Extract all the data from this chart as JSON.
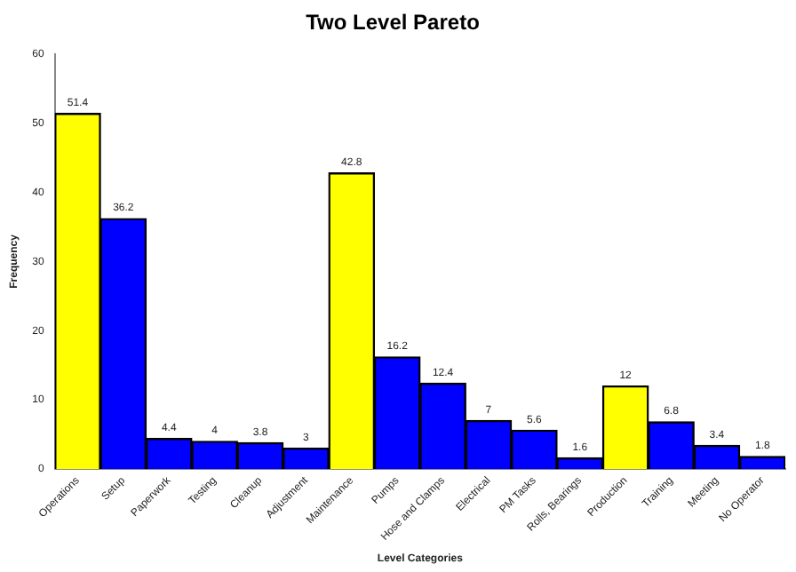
{
  "chart_data": {
    "type": "bar",
    "title": "Two Level Pareto",
    "xlabel": "Level Categories",
    "ylabel": "Frequency",
    "categories": [
      "Operations",
      "Setup",
      "Paperwork",
      "Testing",
      "Cleanup",
      "Adjustment",
      "Maintenance",
      "Pumps",
      "Hose and Clamps",
      "Electrical",
      "PM Tasks",
      "Rolls, Bearings",
      "Production",
      "Training",
      "Meeting",
      "No Operator"
    ],
    "values": [
      51.4,
      36.2,
      4.4,
      4,
      3.8,
      3,
      42.8,
      16.2,
      12.4,
      7,
      5.6,
      1.6,
      12,
      6.8,
      3.4,
      1.8
    ],
    "colors": [
      "#ffff00",
      "#0000ff",
      "#0000ff",
      "#0000ff",
      "#0000ff",
      "#0000ff",
      "#ffff00",
      "#0000ff",
      "#0000ff",
      "#0000ff",
      "#0000ff",
      "#0000ff",
      "#ffff00",
      "#0000ff",
      "#0000ff",
      "#0000ff"
    ],
    "ylim": [
      0,
      60
    ],
    "yticks": [
      0,
      10,
      20,
      30,
      40,
      50,
      60
    ],
    "grid": false,
    "legend": false,
    "data_labels": true
  }
}
